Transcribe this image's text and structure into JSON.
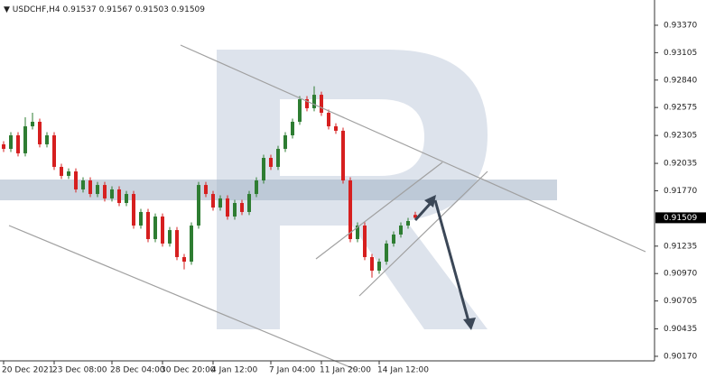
{
  "chart_data": {
    "type": "candlestick",
    "title": "USDCHF,H4",
    "up_color": "#2e7d32",
    "down_color": "#d61f1f",
    "grid": false,
    "categories": [
      "20 Dec 2021",
      null,
      null,
      null,
      null,
      null,
      null,
      "23 Dec 08:00",
      null,
      null,
      null,
      null,
      null,
      null,
      null,
      "28 Dec 04:00",
      null,
      null,
      null,
      null,
      null,
      null,
      "30 Dec 20:00",
      null,
      null,
      null,
      null,
      null,
      null,
      "4 Jan 12:00",
      null,
      null,
      null,
      null,
      null,
      null,
      null,
      "7 Jan 04:00",
      null,
      null,
      null,
      null,
      null,
      null,
      "11 Jan 20:00",
      null,
      null,
      null,
      null,
      null,
      null,
      null,
      "14 Jan 12:00",
      null,
      null,
      null,
      null,
      null
    ],
    "open": [
      0.92219,
      0.92175,
      0.92306,
      0.92132,
      0.92393,
      0.92437,
      0.92219,
      0.92306,
      0.92001,
      0.91914,
      0.91957,
      0.91783,
      0.9187,
      0.91739,
      0.91826,
      0.91696,
      0.91783,
      0.91652,
      0.91739,
      0.91434,
      0.91565,
      0.91303,
      0.91521,
      0.9126,
      0.9139,
      0.91129,
      0.91085,
      0.91434,
      0.91826,
      0.91739,
      0.91608,
      0.91696,
      0.91521,
      0.91652,
      0.91565,
      0.91739,
      0.9187,
      0.92088,
      0.92001,
      0.92175,
      0.92306,
      0.92437,
      0.92655,
      0.92568,
      0.92698,
      0.92524,
      0.92393,
      0.9235,
      0.9187,
      0.91303,
      0.91434,
      0.91129,
      0.90998,
      0.91085,
      0.9126,
      0.91347,
      0.91434,
      0.91537
    ],
    "high": [
      0.92249,
      0.92336,
      0.92336,
      0.9248,
      0.92524,
      0.92467,
      0.92336,
      0.92336,
      0.92031,
      0.91987,
      0.91987,
      0.919,
      0.919,
      0.91856,
      0.91856,
      0.91813,
      0.91813,
      0.91769,
      0.91769,
      0.91595,
      0.91595,
      0.91551,
      0.91551,
      0.9142,
      0.9142,
      0.91159,
      0.91464,
      0.91856,
      0.91856,
      0.91769,
      0.91726,
      0.91726,
      0.91682,
      0.91682,
      0.91769,
      0.919,
      0.92118,
      0.92118,
      0.92205,
      0.92336,
      0.92467,
      0.92685,
      0.92685,
      0.9278,
      0.92728,
      0.92554,
      0.92423,
      0.9238,
      0.919,
      0.91464,
      0.91464,
      0.91159,
      0.91115,
      0.9129,
      0.91377,
      0.91464,
      0.91508,
      0.91567
    ],
    "low": [
      0.92145,
      0.92145,
      0.92102,
      0.92102,
      0.92363,
      0.92189,
      0.92189,
      0.91971,
      0.91884,
      0.91884,
      0.91753,
      0.91753,
      0.91709,
      0.91709,
      0.91666,
      0.91666,
      0.91622,
      0.91622,
      0.91404,
      0.91404,
      0.91273,
      0.91273,
      0.9123,
      0.9123,
      0.91099,
      0.9101,
      0.91055,
      0.91404,
      0.91709,
      0.91578,
      0.91578,
      0.91491,
      0.91491,
      0.91535,
      0.91535,
      0.91709,
      0.9184,
      0.91971,
      0.91971,
      0.92145,
      0.92276,
      0.92407,
      0.92538,
      0.92538,
      0.92494,
      0.92363,
      0.9232,
      0.9184,
      0.91273,
      0.91273,
      0.91099,
      0.9093,
      0.90968,
      0.91055,
      0.9123,
      0.91317,
      0.91404,
      0.91503
    ],
    "close": [
      0.92175,
      0.92306,
      0.92132,
      0.92393,
      0.92437,
      0.92219,
      0.92306,
      0.92001,
      0.91914,
      0.91957,
      0.91783,
      0.9187,
      0.91739,
      0.91826,
      0.91696,
      0.91783,
      0.91652,
      0.91739,
      0.91434,
      0.91565,
      0.91303,
      0.91521,
      0.9126,
      0.9139,
      0.91129,
      0.91085,
      0.91434,
      0.91826,
      0.91739,
      0.91608,
      0.91696,
      0.91521,
      0.91652,
      0.91565,
      0.91739,
      0.9187,
      0.92088,
      0.92001,
      0.92175,
      0.92306,
      0.92437,
      0.92655,
      0.92568,
      0.92698,
      0.92524,
      0.92393,
      0.9235,
      0.9187,
      0.91303,
      0.91434,
      0.91129,
      0.90998,
      0.91085,
      0.9126,
      0.91347,
      0.91434,
      0.91478,
      0.91509
    ],
    "ylim": [
      0.90126,
      0.93614
    ],
    "yticks": [
      {
        "value": 0.9337,
        "label": "0.93370"
      },
      {
        "value": 0.93105,
        "label": "0.93105"
      },
      {
        "value": 0.9284,
        "label": "0.92840"
      },
      {
        "value": 0.92575,
        "label": "0.92575"
      },
      {
        "value": 0.92305,
        "label": "0.92305"
      },
      {
        "value": 0.92035,
        "label": "0.92035"
      },
      {
        "value": 0.9177,
        "label": "0.91770"
      },
      {
        "value": 0.91235,
        "label": "0.91235"
      },
      {
        "value": 0.9097,
        "label": "0.90970"
      },
      {
        "value": 0.90705,
        "label": "0.90705"
      },
      {
        "value": 0.90435,
        "label": "0.90435"
      },
      {
        "value": 0.9017,
        "label": "0.90170"
      }
    ]
  }
}
